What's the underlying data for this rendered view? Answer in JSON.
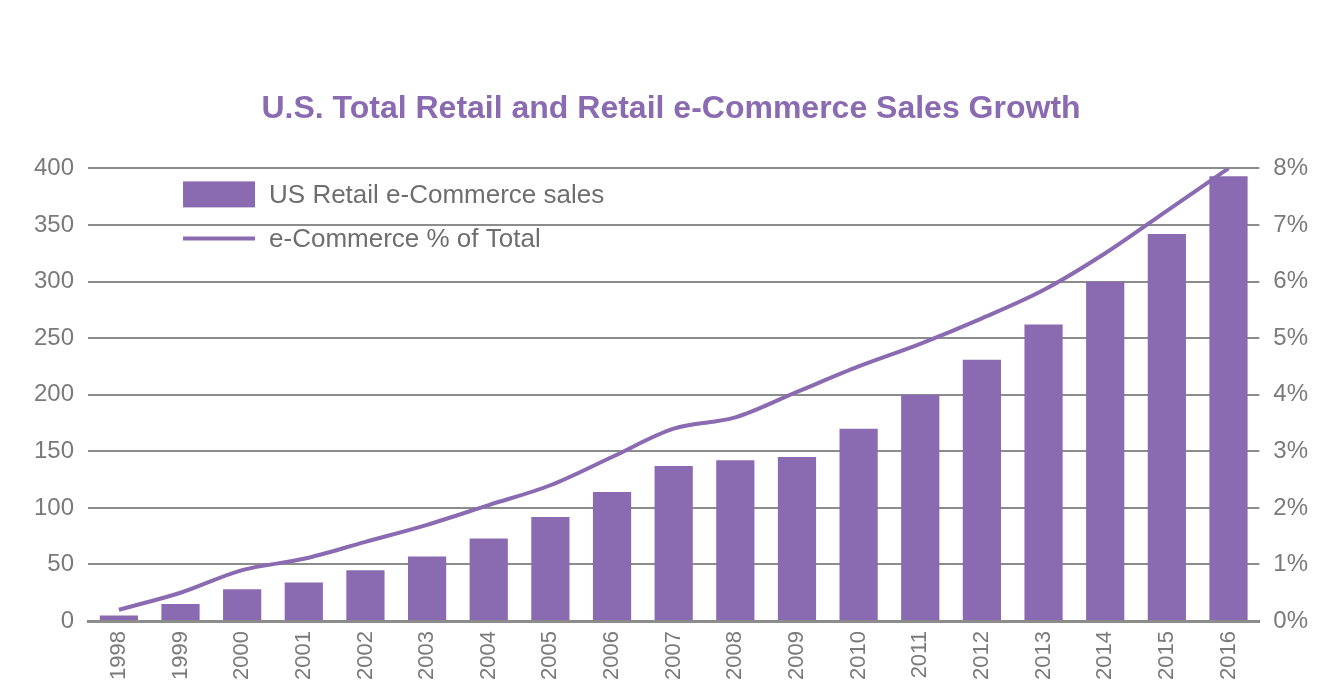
{
  "chart_data": {
    "type": "bar",
    "title": "U.S. Total Retail and Retail e-Commerce Sales Growth",
    "categories": [
      "1998",
      "1999",
      "2000",
      "2001",
      "2002",
      "2003",
      "2004",
      "2005",
      "2006",
      "2007",
      "2008",
      "2009",
      "2010",
      "2011",
      "2012",
      "2013",
      "2014",
      "2015",
      "2016"
    ],
    "series": [
      {
        "name": "US Retail e-Commerce sales",
        "type": "bar",
        "color": "#8a6bb2",
        "values": [
          5,
          15,
          28,
          34,
          45,
          57,
          73,
          92,
          114,
          137,
          142,
          145,
          170,
          200,
          231,
          262,
          300,
          342,
          393
        ]
      },
      {
        "name": "e-Commerce % of Total",
        "type": "line",
        "axis": "y2",
        "color": "#8a6bb2",
        "marker": "none",
        "line_style": "solid",
        "values": [
          0.2,
          0.5,
          0.9,
          1.1,
          1.4,
          1.7,
          2.05,
          2.4,
          2.9,
          3.4,
          3.6,
          4.05,
          4.5,
          4.9,
          5.35,
          5.85,
          6.5,
          7.25,
          8.0
        ]
      }
    ],
    "ylim": [
      0,
      400
    ],
    "yticks": [
      0,
      50,
      100,
      150,
      200,
      250,
      300,
      350,
      400
    ],
    "y2lim": [
      0,
      8
    ],
    "y2ticks": [
      {
        "value": 0,
        "label": "0%"
      },
      {
        "value": 1,
        "label": "1%"
      },
      {
        "value": 2,
        "label": "2%"
      },
      {
        "value": 3,
        "label": "3%"
      },
      {
        "value": 4,
        "label": "4%"
      },
      {
        "value": 5,
        "label": "5%"
      },
      {
        "value": 6,
        "label": "6%"
      },
      {
        "value": 7,
        "label": "7%"
      },
      {
        "value": 8,
        "label": "8%"
      }
    ],
    "grid": true,
    "legend": "upper left"
  }
}
